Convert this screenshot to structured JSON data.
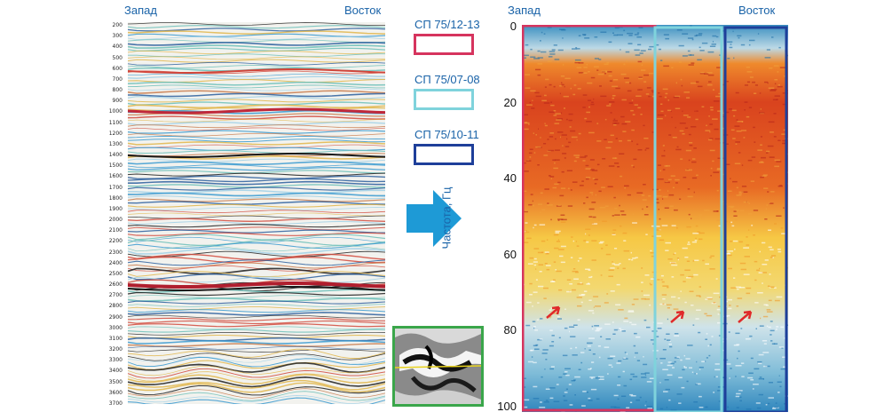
{
  "left": {
    "west": "Запад",
    "east": "Восток",
    "time_ticks": [
      "200",
      "300",
      "400",
      "500",
      "600",
      "700",
      "800",
      "900",
      "1000",
      "1100",
      "1200",
      "1300",
      "1400",
      "1500",
      "1600",
      "1700",
      "1800",
      "1900",
      "2000",
      "2100",
      "2200",
      "2300",
      "2400",
      "2500",
      "2600",
      "2700",
      "2800",
      "2900",
      "3000",
      "3100",
      "3200",
      "3300",
      "3400",
      "3500",
      "3600",
      "3700"
    ]
  },
  "legend": {
    "items": [
      {
        "label": "СП 75/12-13",
        "color": "#d6345e"
      },
      {
        "label": "СП 75/07-08",
        "color": "#7fd3dc"
      },
      {
        "label": "СП 75/10-11",
        "color": "#1e3f9a"
      }
    ]
  },
  "right": {
    "west": "Запад",
    "east": "Восток",
    "ylabel": "Частота, Гц",
    "y_ticks": [
      "0",
      "20",
      "40",
      "60",
      "80",
      "100"
    ]
  },
  "colors": {
    "label_blue": "#1a63a8",
    "arrow": "#1e9ad6",
    "inset_border": "#3aa64a",
    "red_arrow": "#e02a2a"
  }
}
